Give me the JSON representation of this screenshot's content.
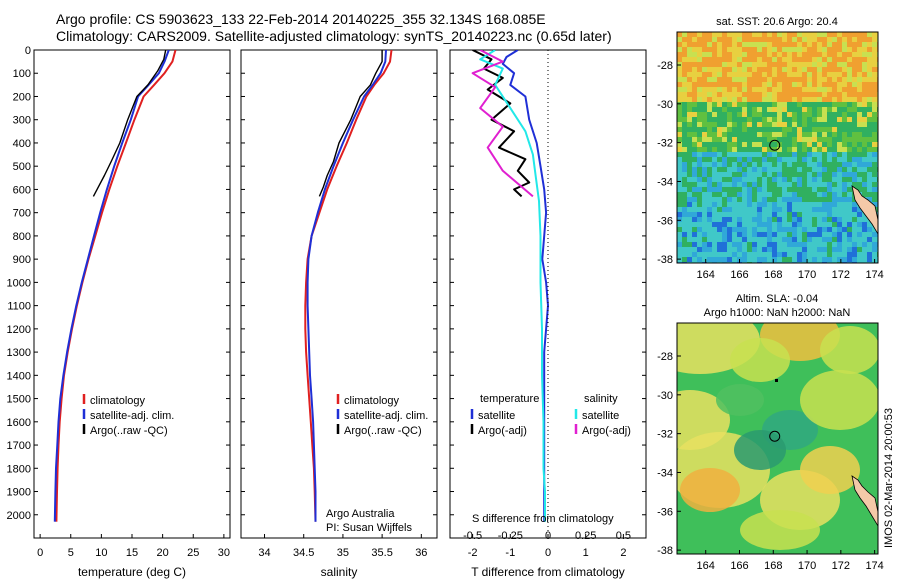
{
  "header": {
    "line1": "Argo profile: CS 5903623_133 22-Feb-2014 20140225_355 32.134S 168.085E",
    "line2": "Climatology: CARS2009. Satellite-adjusted climatology: synTS_20140223.nc (0.65d later)"
  },
  "credits": {
    "org": "Argo Australia",
    "pi": "PI: Susan Wijffels",
    "stamp": "IMOS 02-Mar-2014 20:00:53"
  },
  "colors": {
    "climatology": "#e02020",
    "satellite": "#1f2fd6",
    "argo": "#000000",
    "salinity_satellite": "#22e8e8",
    "salinity_argo": "#e020d0"
  },
  "chart_data": [
    {
      "type": "line",
      "panel": "temperature",
      "xlabel": "temperature (deg C)",
      "ylabel": "",
      "xlim": [
        -1,
        31
      ],
      "ylim": [
        2100,
        0
      ],
      "xticks": [
        0,
        5,
        10,
        15,
        20,
        25,
        30
      ],
      "yticks": [
        0,
        100,
        200,
        300,
        400,
        500,
        600,
        700,
        800,
        900,
        1000,
        1100,
        1200,
        1300,
        1400,
        1500,
        1600,
        1700,
        1800,
        1900,
        2000
      ],
      "legend": [
        "climatology",
        "satellite-adj. clim.",
        "Argo(..raw -QC)"
      ],
      "series": [
        {
          "name": "climatology",
          "color": "#e02020",
          "x": [
            22.1,
            21.6,
            20.3,
            18.6,
            16.9,
            15.4,
            14.0,
            12.6,
            11.3,
            10.1,
            9.0,
            7.9,
            6.9,
            6.0,
            5.2,
            4.5,
            3.9,
            3.5,
            3.2,
            3.0,
            2.85,
            2.75,
            2.65
          ],
          "y": [
            0,
            50,
            100,
            150,
            200,
            300,
            400,
            500,
            600,
            700,
            800,
            900,
            1000,
            1100,
            1200,
            1300,
            1400,
            1500,
            1600,
            1700,
            1800,
            1900,
            2030
          ]
        },
        {
          "name": "satellite-adj. clim.",
          "color": "#1f2fd6",
          "x": [
            21.0,
            20.3,
            19.4,
            17.7,
            16.0,
            14.8,
            13.4,
            12.1,
            10.9,
            9.8,
            8.8,
            7.8,
            6.8,
            5.9,
            5.1,
            4.4,
            3.8,
            3.3,
            3.0,
            2.8,
            2.6,
            2.5,
            2.4
          ],
          "y": [
            0,
            50,
            100,
            150,
            200,
            300,
            400,
            500,
            600,
            700,
            800,
            900,
            1000,
            1100,
            1200,
            1300,
            1400,
            1500,
            1600,
            1700,
            1800,
            1900,
            2030
          ]
        },
        {
          "name": "Argo(..raw -QC)",
          "color": "#000000",
          "x": [
            20.5,
            20.2,
            19.2,
            17.6,
            15.8,
            14.3,
            13.0,
            11.6,
            10.5,
            9.5,
            8.7
          ],
          "y": [
            0,
            40,
            90,
            150,
            200,
            300,
            400,
            480,
            540,
            590,
            630
          ]
        }
      ]
    },
    {
      "type": "line",
      "panel": "salinity",
      "xlabel": "salinity",
      "ylabel": "",
      "xlim": [
        33.7,
        36.2
      ],
      "ylim": [
        2100,
        0
      ],
      "xticks": [
        34,
        34.5,
        35,
        35.5,
        36
      ],
      "legend": [
        "climatology",
        "satellite-adj. clim.",
        "Argo(..raw -QC)"
      ],
      "series": [
        {
          "name": "climatology",
          "color": "#e02020",
          "x": [
            35.62,
            35.6,
            35.52,
            35.4,
            35.3,
            35.17,
            35.05,
            34.92,
            34.8,
            34.7,
            34.6,
            34.55,
            34.53,
            34.52,
            34.52,
            34.53,
            34.55,
            34.57,
            34.59,
            34.61,
            34.63,
            34.64,
            34.65
          ],
          "y": [
            0,
            50,
            100,
            150,
            200,
            300,
            400,
            500,
            600,
            700,
            800,
            900,
            1000,
            1100,
            1200,
            1300,
            1400,
            1500,
            1600,
            1700,
            1800,
            1900,
            2030
          ]
        },
        {
          "name": "satellite-adj. clim.",
          "color": "#1f2fd6",
          "x": [
            35.55,
            35.54,
            35.48,
            35.38,
            35.27,
            35.13,
            35.0,
            34.88,
            34.77,
            34.68,
            34.6,
            34.56,
            34.55,
            34.55,
            34.56,
            34.57,
            34.58,
            34.6,
            34.62,
            34.63,
            34.64,
            34.65,
            34.65
          ],
          "y": [
            0,
            50,
            100,
            150,
            200,
            300,
            400,
            500,
            600,
            700,
            800,
            900,
            1000,
            1100,
            1200,
            1300,
            1400,
            1500,
            1600,
            1700,
            1800,
            1900,
            2030
          ]
        },
        {
          "name": "Argo(..raw -QC)",
          "color": "#000000",
          "x": [
            35.5,
            35.5,
            35.42,
            35.35,
            35.22,
            35.1,
            34.95,
            34.88,
            34.8,
            34.75,
            34.7
          ],
          "y": [
            0,
            50,
            100,
            150,
            200,
            300,
            400,
            480,
            540,
            590,
            630
          ]
        }
      ]
    },
    {
      "type": "line",
      "panel": "difference",
      "xlabel": "T difference from climatology",
      "toplabel": "S difference from climatology",
      "xlim": [
        -2.6,
        2.6
      ],
      "ylim": [
        2100,
        0
      ],
      "xticks": [
        -2,
        -1,
        0,
        1,
        2
      ],
      "sticks": [
        "-0.5",
        "-0.25",
        "0",
        "0.25",
        "0.5"
      ],
      "legend_temperature": [
        "temperature",
        "satellite",
        "Argo(-adj)"
      ],
      "legend_salinity": [
        "salinity",
        "satellite",
        "Argo(-adj)"
      ],
      "series": [
        {
          "name": "satellite",
          "color": "#1f2fd6",
          "x": [
            -0.8,
            -1.1,
            -1.2,
            -0.9,
            -1.0,
            -0.6,
            -0.5,
            -0.3,
            -0.2,
            -0.1,
            -0.05,
            -0.1,
            -0.15,
            -0.05,
            0.0,
            -0.05,
            -0.1,
            -0.1,
            -0.1,
            -0.1,
            -0.1,
            -0.1
          ],
          "y": [
            0,
            30,
            60,
            100,
            150,
            200,
            300,
            400,
            500,
            600,
            700,
            800,
            900,
            1000,
            1100,
            1200,
            1300,
            1400,
            1600,
            1800,
            1900,
            2030
          ]
        },
        {
          "name": "Argo(-adj)",
          "color": "#000000",
          "x": [
            -2.0,
            -1.5,
            -1.7,
            -1.2,
            -1.6,
            -1.0,
            -1.5,
            -0.9,
            -1.3,
            -0.6,
            -0.8,
            -0.5,
            -0.9,
            -0.7
          ],
          "y": [
            0,
            40,
            80,
            120,
            170,
            230,
            300,
            350,
            420,
            470,
            520,
            570,
            600,
            630
          ]
        },
        {
          "name": "salinity satellite",
          "color": "#22e8e8",
          "x": [
            -0.35,
            -0.45,
            -0.3,
            -0.35,
            -0.25,
            -0.15,
            -0.1,
            -0.08,
            -0.06,
            -0.05,
            -0.05,
            -0.04,
            -0.04,
            -0.03,
            -0.03,
            -0.02,
            -0.02
          ],
          "y": [
            0,
            40,
            80,
            150,
            250,
            350,
            450,
            550,
            650,
            800,
            1000,
            1200,
            1400,
            1600,
            1800,
            1900,
            2030
          ]
        },
        {
          "name": "salinity Argo(-adj)",
          "color": "#e020d0",
          "x": [
            -0.45,
            -0.3,
            -0.5,
            -0.35,
            -0.45,
            -0.3,
            -0.4,
            -0.3,
            -0.1
          ],
          "y": [
            0,
            50,
            100,
            160,
            250,
            330,
            420,
            520,
            630
          ]
        }
      ]
    },
    {
      "type": "heatmap",
      "panel": "sst_map",
      "title": "sat. SST: 20.6 Argo: 20.4",
      "xticks": [
        164,
        166,
        168,
        170,
        172,
        174
      ],
      "yticks": [
        -28,
        -30,
        -32,
        -34,
        -36,
        -38
      ],
      "xlim": [
        162.3,
        174.2
      ],
      "ylim": [
        -38.2,
        -26.3
      ],
      "marker": {
        "lon": 168.085,
        "lat": -32.134
      }
    },
    {
      "type": "heatmap",
      "panel": "sla_map",
      "title": "Altim. SLA: -0.04",
      "subtitle": "Argo h1000: NaN h2000: NaN",
      "xticks": [
        164,
        166,
        168,
        170,
        172,
        174
      ],
      "yticks": [
        -28,
        -30,
        -32,
        -34,
        -36,
        -38
      ],
      "xlim": [
        162.3,
        174.2
      ],
      "ylim": [
        -38.2,
        -26.3
      ],
      "marker": {
        "lon": 168.085,
        "lat": -32.134
      }
    }
  ]
}
